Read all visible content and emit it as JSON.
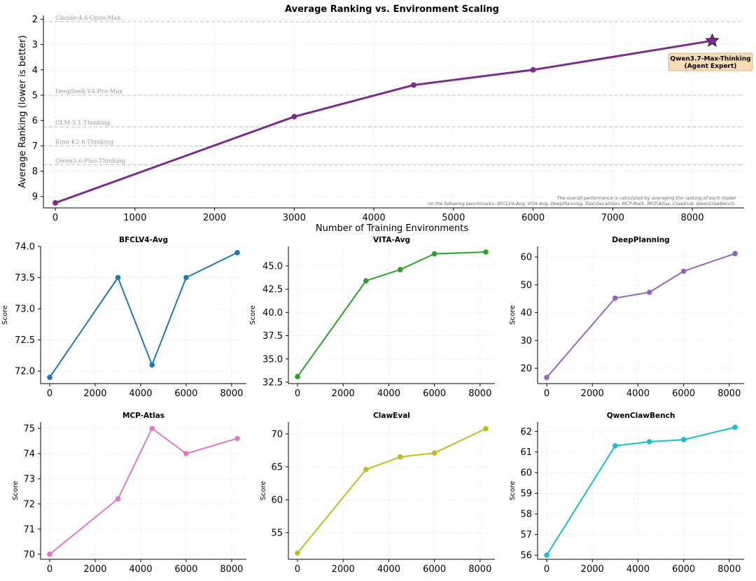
{
  "chart_data": [
    {
      "id": "main",
      "type": "line",
      "title": "Average Ranking vs. Environment Scaling",
      "xlabel": "Number of Training Environments",
      "ylabel": "Average Ranking (lower is better)",
      "xlim": [
        -150,
        8650
      ],
      "ylim": [
        9.45,
        1.85
      ],
      "y_inverted": true,
      "xticks": [
        0,
        1000,
        2000,
        3000,
        4000,
        5000,
        6000,
        7000,
        8000
      ],
      "yticks": [
        2,
        3,
        4,
        5,
        6,
        7,
        8,
        9
      ],
      "grid": true,
      "color": "#7b2d8e",
      "x": [
        0,
        3000,
        4500,
        6000,
        8250
      ],
      "values": [
        9.25,
        5.85,
        4.6,
        4.0,
        2.85
      ],
      "final_marker": "star",
      "final_annotation": [
        "Qwen3.7-Max-Thinking",
        "(Agent Expert)"
      ],
      "reference_lines": [
        {
          "name": "Claude-4.6-Opus-Max",
          "value": 2.1
        },
        {
          "name": "DeepSeek-V4-Pro-Max",
          "value": 5.0
        },
        {
          "name": "GLM-5.1-Thinking",
          "value": 6.25
        },
        {
          "name": "Kimi-K2.6-Thinking",
          "value": 7.0
        },
        {
          "name": "Qwen3.6-Plus-Thinking",
          "value": 7.75
        }
      ],
      "footnote": [
        "The overall performance is calculated by averaging the ranking of each model",
        "on the following benchmarks: BFCLV4-Avg, VITA-Avg, DeepPlanning, Tool-Decathlon, MCP-Mark, MCP-Atlas, ClawEval, QwenClawBench."
      ]
    },
    {
      "id": "bfclv4",
      "type": "line",
      "title": "BFCLV4-Avg",
      "ylabel": "Score",
      "color": "#1f77b4",
      "x": [
        0,
        3000,
        4500,
        6000,
        8250
      ],
      "values": [
        71.9,
        73.5,
        72.1,
        73.5,
        73.9
      ],
      "xlim": [
        -400,
        8650
      ],
      "ylim": [
        71.8,
        74.0
      ],
      "xticks": [
        0,
        2000,
        4000,
        6000,
        8000
      ],
      "yticks": [
        72.0,
        72.5,
        73.0,
        73.5,
        74.0
      ],
      "ytick_labels": [
        "72.0",
        "72.5",
        "73.0",
        "73.5",
        "74.0"
      ]
    },
    {
      "id": "vita",
      "type": "line",
      "title": "VITA-Avg",
      "ylabel": "Score",
      "color": "#2ca02c",
      "x": [
        0,
        3000,
        4500,
        6000,
        8250
      ],
      "values": [
        33.1,
        43.4,
        44.6,
        46.3,
        46.5
      ],
      "xlim": [
        -400,
        8650
      ],
      "ylim": [
        32.35,
        47.1
      ],
      "xticks": [
        0,
        2000,
        4000,
        6000,
        8000
      ],
      "yticks": [
        32.5,
        35.0,
        37.5,
        40.0,
        42.5,
        45.0
      ],
      "ytick_labels": [
        "32.5",
        "35.0",
        "37.5",
        "40.0",
        "42.5",
        "45.0"
      ]
    },
    {
      "id": "deepplanning",
      "type": "line",
      "title": "DeepPlanning",
      "ylabel": "Score",
      "color": "#9467bd",
      "x": [
        0,
        3000,
        4500,
        6000,
        8250
      ],
      "values": [
        16.7,
        45.2,
        47.3,
        54.9,
        61.2
      ],
      "xlim": [
        -400,
        8650
      ],
      "ylim": [
        14.5,
        63.8
      ],
      "xticks": [
        0,
        2000,
        4000,
        6000,
        8000
      ],
      "yticks": [
        20,
        30,
        40,
        50,
        60
      ],
      "ytick_labels": [
        "20",
        "30",
        "40",
        "50",
        "60"
      ]
    },
    {
      "id": "mcpatlas",
      "type": "line",
      "title": "MCP-Atlas",
      "ylabel": "Score",
      "color": "#e377c2",
      "x": [
        0,
        3000,
        4500,
        6000,
        8250
      ],
      "values": [
        70.0,
        72.2,
        75.0,
        74.0,
        74.6
      ],
      "xlim": [
        -400,
        8650
      ],
      "ylim": [
        69.8,
        75.25
      ],
      "xticks": [
        0,
        2000,
        4000,
        6000,
        8000
      ],
      "yticks": [
        70,
        71,
        72,
        73,
        74,
        75
      ],
      "ytick_labels": [
        "70",
        "71",
        "72",
        "73",
        "74",
        "75"
      ]
    },
    {
      "id": "claweval",
      "type": "line",
      "title": "ClawEval",
      "ylabel": "Score",
      "color": "#bcbd22",
      "x": [
        0,
        3000,
        4500,
        6000,
        8250
      ],
      "values": [
        51.9,
        64.6,
        66.5,
        67.1,
        70.8
      ],
      "xlim": [
        -400,
        8650
      ],
      "ylim": [
        50.95,
        71.8
      ],
      "xticks": [
        0,
        2000,
        4000,
        6000,
        8000
      ],
      "yticks": [
        55,
        60,
        65,
        70
      ],
      "ytick_labels": [
        "55",
        "60",
        "65",
        "70"
      ]
    },
    {
      "id": "qwenclawbench",
      "type": "line",
      "title": "QwenClawBench",
      "ylabel": "Score",
      "color": "#17becf",
      "x": [
        0,
        3000,
        4500,
        6000,
        8250
      ],
      "values": [
        56.0,
        61.3,
        61.5,
        61.6,
        62.2
      ],
      "xlim": [
        -400,
        8650
      ],
      "ylim": [
        55.8,
        62.45
      ],
      "xticks": [
        0,
        2000,
        4000,
        6000,
        8000
      ],
      "yticks": [
        56,
        57,
        58,
        59,
        60,
        61,
        62
      ],
      "ytick_labels": [
        "56",
        "57",
        "58",
        "59",
        "60",
        "61",
        "62"
      ]
    }
  ]
}
